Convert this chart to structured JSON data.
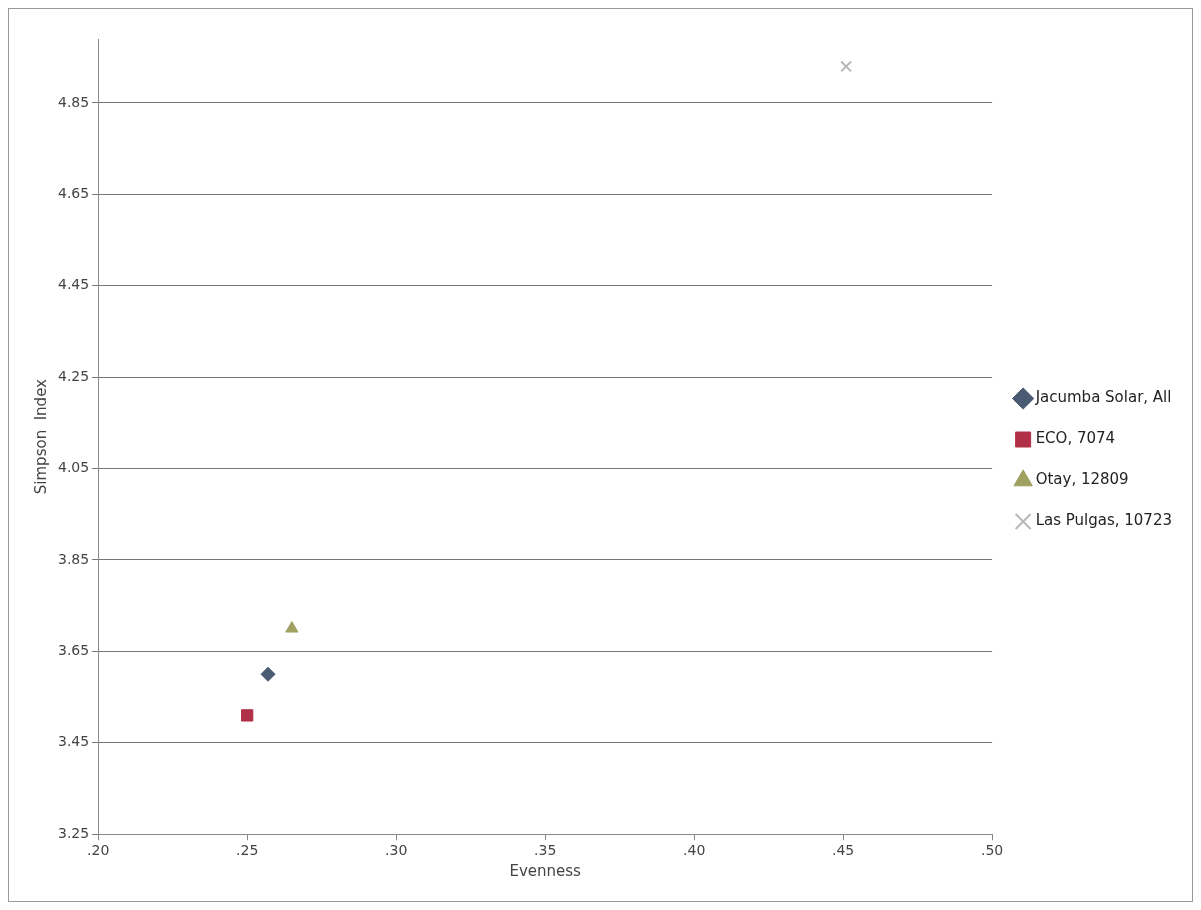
{
  "chart_data": {
    "type": "scatter",
    "xlabel": "Evenness",
    "ylabel": "Simpson  Index",
    "xlim": [
      0.2,
      0.5
    ],
    "xticks": [
      {
        "value": 0.2,
        "label": ".20"
      },
      {
        "value": 0.25,
        "label": ".25"
      },
      {
        "value": 0.3,
        "label": ".30"
      },
      {
        "value": 0.35,
        "label": ".35"
      },
      {
        "value": 0.4,
        "label": ".40"
      },
      {
        "value": 0.45,
        "label": ".45"
      },
      {
        "value": 0.5,
        "label": ".50"
      }
    ],
    "ylim": [
      3.25,
      4.99
    ],
    "yticks": [
      3.25,
      3.45,
      3.65,
      3.85,
      4.05,
      4.25,
      4.45,
      4.65,
      4.85
    ],
    "grid": "y",
    "legend": "right",
    "series": [
      {
        "name": "Jacumba Solar, All",
        "color": "#4a5a72",
        "marker": "diamond",
        "x": [
          0.257
        ],
        "values": [
          3.6
        ]
      },
      {
        "name": "ECO, 7074",
        "color": "#b03048",
        "marker": "square",
        "x": [
          0.25
        ],
        "values": [
          3.51
        ]
      },
      {
        "name": "Otay, 12809",
        "color": "#a0a060",
        "marker": "triangle",
        "x": [
          0.265
        ],
        "values": [
          3.7
        ]
      },
      {
        "name": "Las Pulgas, 10723",
        "color": "#b8b8b8",
        "marker": "cross",
        "x": [
          0.451
        ],
        "values": [
          4.93
        ]
      }
    ]
  }
}
